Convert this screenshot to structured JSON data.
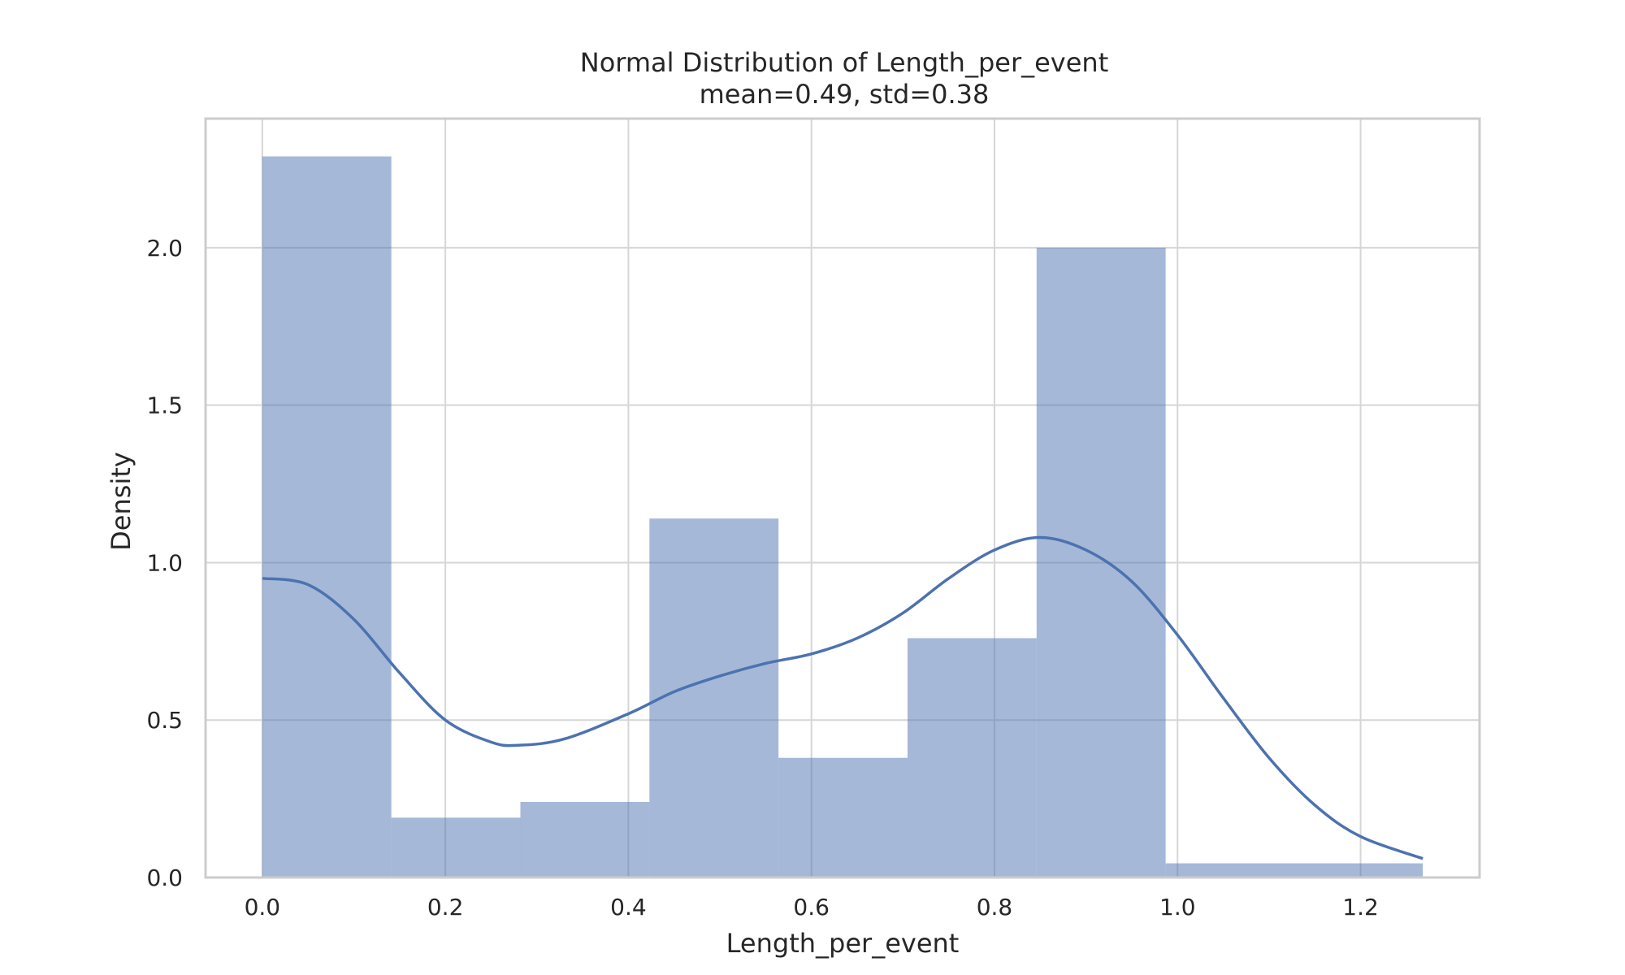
{
  "chart_data": {
    "type": "bar",
    "title": "Normal Distribution of Length_per_event",
    "subtitle": "mean=0.49, std=0.38",
    "xlabel": "Length_per_event",
    "ylabel": "Density",
    "xlim": [
      -0.062,
      1.33
    ],
    "ylim": [
      0,
      2.41
    ],
    "xticks": [
      "0.0",
      "0.2",
      "0.4",
      "0.6",
      "0.8",
      "1.0",
      "1.2"
    ],
    "xtick_values": [
      0.0,
      0.2,
      0.4,
      0.6,
      0.8,
      1.0,
      1.2
    ],
    "yticks": [
      "0.0",
      "0.5",
      "1.0",
      "1.5",
      "2.0"
    ],
    "ytick_values": [
      0.0,
      0.5,
      1.0,
      1.5,
      2.0
    ],
    "grid": true,
    "bar_color": "#4c72b0",
    "histogram": {
      "bin_edges": [
        0.0,
        0.141,
        0.282,
        0.423,
        0.564,
        0.705,
        0.846,
        0.987,
        1.268
      ],
      "values": [
        2.29,
        0.19,
        0.24,
        1.14,
        0.38,
        0.76,
        2.0,
        0.045
      ]
    },
    "kde": {
      "x": [
        0.0,
        0.05,
        0.1,
        0.15,
        0.2,
        0.25,
        0.28,
        0.33,
        0.4,
        0.45,
        0.5,
        0.55,
        0.6,
        0.65,
        0.7,
        0.75,
        0.8,
        0.85,
        0.9,
        0.95,
        1.0,
        1.05,
        1.1,
        1.15,
        1.2,
        1.268
      ],
      "y": [
        0.95,
        0.93,
        0.82,
        0.65,
        0.5,
        0.43,
        0.42,
        0.44,
        0.52,
        0.59,
        0.64,
        0.68,
        0.71,
        0.76,
        0.84,
        0.95,
        1.04,
        1.08,
        1.04,
        0.94,
        0.77,
        0.57,
        0.38,
        0.23,
        0.13,
        0.06
      ]
    }
  }
}
